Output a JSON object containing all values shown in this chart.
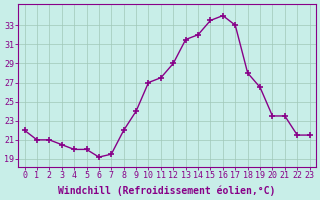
{
  "x": [
    0,
    1,
    2,
    3,
    4,
    5,
    6,
    7,
    8,
    9,
    10,
    11,
    12,
    13,
    14,
    15,
    16,
    17,
    18,
    19,
    20,
    21,
    22,
    23
  ],
  "y": [
    22.0,
    21.0,
    21.0,
    20.5,
    20.0,
    20.0,
    19.2,
    19.5,
    22.0,
    24.0,
    27.0,
    27.5,
    29.0,
    31.5,
    32.0,
    33.5,
    34.0,
    33.0,
    28.0,
    26.5,
    23.5,
    23.5,
    21.5,
    21.5
  ],
  "line_color": "#880088",
  "marker": "+",
  "marker_size": 5,
  "marker_lw": 1.2,
  "bg_color": "#c8eee8",
  "grid_color": "#a0c8b8",
  "xlabel": "Windchill (Refroidissement éolien,°C)",
  "yticks": [
    19,
    21,
    23,
    25,
    27,
    29,
    31,
    33
  ],
  "ytick_labels": [
    "19",
    "21",
    "23",
    "25",
    "27",
    "29",
    "31",
    "33"
  ],
  "xtick_labels": [
    "0",
    "1",
    "2",
    "3",
    "4",
    "5",
    "6",
    "7",
    "8",
    "9",
    "10",
    "11",
    "12",
    "13",
    "14",
    "15",
    "16",
    "17",
    "18",
    "19",
    "20",
    "21",
    "22",
    "23"
  ],
  "ylim": [
    18.2,
    35.2
  ],
  "xlim": [
    -0.5,
    23.5
  ],
  "axis_fontsize": 7,
  "tick_fontsize": 6
}
